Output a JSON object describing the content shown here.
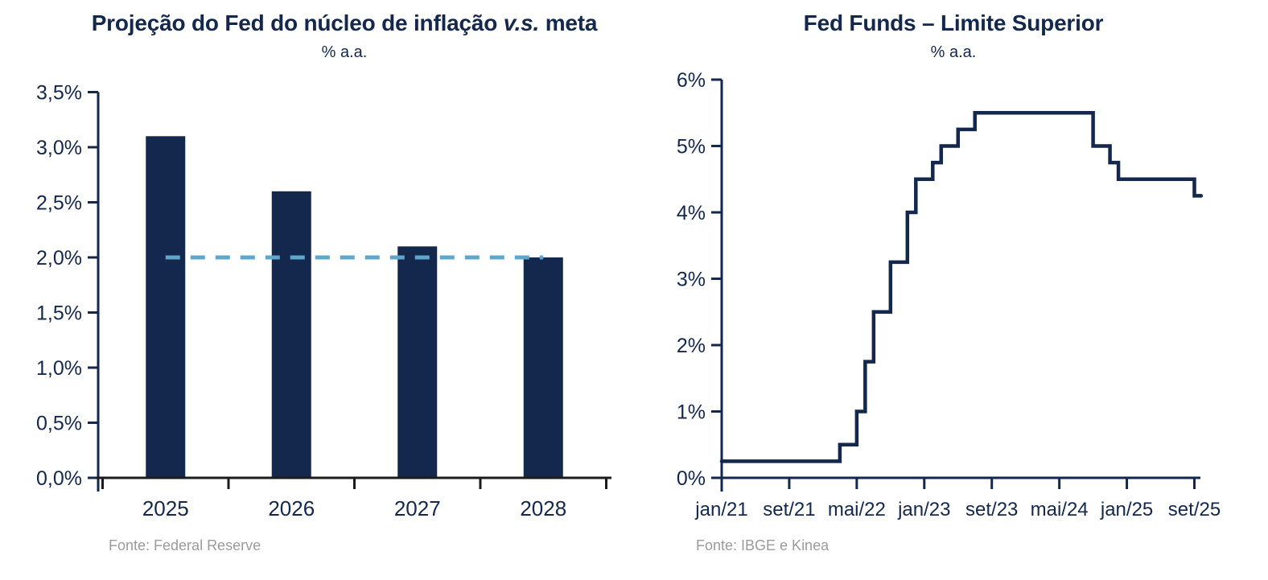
{
  "colors": {
    "navy": "#14274d",
    "x_axis_black": "#1c1c1c",
    "target_dash_blue": "#5ea7cb",
    "source_gray": "#9b9b9b",
    "background": "#ffffff"
  },
  "chart_data": [
    {
      "type": "bar",
      "title_pre": "Projeção do Fed do núcleo de inflação",
      "title_italic": "v.s.",
      "title_post": "meta",
      "subtitle": "% a.a.",
      "source": "Fonte: Federal Reserve",
      "categories": [
        "2025",
        "2026",
        "2027",
        "2028"
      ],
      "values": [
        3.1,
        2.6,
        2.1,
        2.0
      ],
      "bar_color": "#14274d",
      "target_line": {
        "value": 2.0,
        "color": "#5ea7cb",
        "style": "dashed"
      },
      "ylim": [
        0,
        3.5
      ],
      "ytick_step": 0.5,
      "ytick_labels": [
        "0,0%",
        "0,5%",
        "1,0%",
        "1,5%",
        "2,0%",
        "2,5%",
        "3,0%",
        "3,5%"
      ],
      "grid": false,
      "legend": "none"
    },
    {
      "type": "line",
      "line_style": "step",
      "title": "Fed Funds – Limite Superior",
      "subtitle": "% a.a.",
      "source": "Fonte: IBGE e Kinea",
      "series_name": "Fed Funds - limite superior",
      "line_color": "#14274d",
      "ylim": [
        0,
        6
      ],
      "ytick_labels": [
        "0%",
        "1%",
        "2%",
        "3%",
        "4%",
        "5%",
        "6%"
      ],
      "xtick_labels": [
        "jan/21",
        "set/21",
        "mai/22",
        "jan/23",
        "set/23",
        "mai/24",
        "jan/25",
        "set/25"
      ],
      "xtick_months": [
        0,
        8,
        16,
        24,
        32,
        40,
        48,
        56
      ],
      "xlim_months": [
        0,
        56.8
      ],
      "steps": [
        {
          "date": "jan/21",
          "month": 0,
          "value": 0.25
        },
        {
          "date": "mar/22",
          "month": 14,
          "value": 0.5
        },
        {
          "date": "mai/22",
          "month": 16,
          "value": 1.0
        },
        {
          "date": "jun/22",
          "month": 17,
          "value": 1.75
        },
        {
          "date": "jul/22",
          "month": 18,
          "value": 2.5
        },
        {
          "date": "set/22",
          "month": 20,
          "value": 3.25
        },
        {
          "date": "nov/22",
          "month": 22,
          "value": 4.0
        },
        {
          "date": "dez/22",
          "month": 23,
          "value": 4.5
        },
        {
          "date": "fev/23",
          "month": 25,
          "value": 4.75
        },
        {
          "date": "mar/23",
          "month": 26,
          "value": 5.0
        },
        {
          "date": "mai/23",
          "month": 28,
          "value": 5.25
        },
        {
          "date": "jul/23",
          "month": 30,
          "value": 5.5
        },
        {
          "date": "set/24",
          "month": 44,
          "value": 5.0
        },
        {
          "date": "nov/24",
          "month": 46,
          "value": 4.75
        },
        {
          "date": "dez/24",
          "month": 47,
          "value": 4.5
        },
        {
          "date": "set/25",
          "month": 56,
          "value": 4.25
        }
      ],
      "grid": false,
      "legend": "none"
    }
  ]
}
